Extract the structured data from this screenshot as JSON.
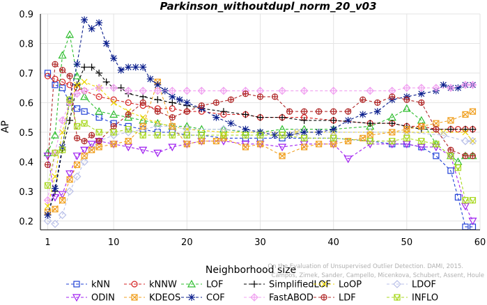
{
  "chart_data": {
    "type": "line",
    "title": "Parkinson_withoutdupl_norm_20_v03",
    "xlabel": "Neighborhood size",
    "ylabel": "AP",
    "xlim": [
      0,
      60
    ],
    "ylim": [
      0.17,
      0.9
    ],
    "xticks": [
      1,
      10,
      20,
      30,
      40,
      50,
      60
    ],
    "yticks": [
      0.2,
      0.3,
      0.4,
      0.5,
      0.6,
      0.7,
      0.8,
      0.9
    ],
    "grid": true,
    "legend_position": "bottom",
    "watermark": [
      "Campos, Zimek, Sander, Campello, Micenkova, Schubert, Assent, Houle",
      "On the Evaluation of Unsupervised Outlier Detection. DAMI, 2015."
    ],
    "series": [
      {
        "name": "kNN",
        "color": "#1f3fd6",
        "marker": "square",
        "x": [
          1,
          2,
          3,
          4,
          5,
          6,
          8,
          10,
          12,
          14,
          16,
          18,
          20,
          22,
          25,
          28,
          30,
          33,
          36,
          40,
          45,
          48,
          50,
          52,
          54,
          56,
          57,
          58,
          59
        ],
        "y": [
          0.7,
          0.66,
          0.65,
          0.6,
          0.58,
          0.57,
          0.55,
          0.53,
          0.52,
          0.51,
          0.5,
          0.5,
          0.49,
          0.49,
          0.48,
          0.48,
          0.48,
          0.48,
          0.48,
          0.48,
          0.47,
          0.46,
          0.46,
          0.45,
          0.42,
          0.37,
          0.28,
          0.18,
          0.18
        ]
      },
      {
        "name": "kNNW",
        "color": "#d42020",
        "marker": "circle",
        "x": [
          1,
          2,
          3,
          4,
          5,
          6,
          8,
          10,
          12,
          14,
          16,
          18,
          20,
          22,
          25,
          28,
          30,
          33,
          36,
          40,
          45,
          48,
          50,
          52,
          54,
          56,
          57,
          58,
          59
        ],
        "y": [
          0.69,
          0.68,
          0.67,
          0.66,
          0.65,
          0.64,
          0.62,
          0.61,
          0.6,
          0.59,
          0.58,
          0.58,
          0.57,
          0.57,
          0.56,
          0.56,
          0.55,
          0.55,
          0.55,
          0.54,
          0.53,
          0.53,
          0.52,
          0.52,
          0.51,
          0.51,
          0.51,
          0.51,
          0.51
        ]
      },
      {
        "name": "LOF",
        "color": "#2dbd2d",
        "marker": "triangle-up",
        "x": [
          1,
          2,
          3,
          4,
          5,
          6,
          8,
          10,
          12,
          14,
          16,
          18,
          20,
          22,
          25,
          28,
          30,
          33,
          36,
          40,
          45,
          48,
          50,
          52,
          54,
          56,
          57,
          58,
          59
        ],
        "y": [
          0.43,
          0.49,
          0.76,
          0.83,
          0.69,
          0.62,
          0.57,
          0.56,
          0.55,
          0.54,
          0.53,
          0.52,
          0.52,
          0.51,
          0.51,
          0.5,
          0.5,
          0.51,
          0.51,
          0.51,
          0.52,
          0.55,
          0.58,
          0.54,
          0.46,
          0.42,
          0.4,
          0.42,
          0.42
        ]
      },
      {
        "name": "SimplifiedLOF",
        "color": "#000000",
        "marker": "plus",
        "x": [
          1,
          2,
          3,
          4,
          5,
          6,
          7,
          8,
          9,
          10,
          11,
          12,
          14,
          16,
          18,
          20,
          22,
          25,
          28,
          30,
          33,
          36,
          40,
          45,
          48,
          50,
          52,
          54,
          56,
          58,
          59
        ],
        "y": [
          0.22,
          0.3,
          0.44,
          0.54,
          0.66,
          0.72,
          0.72,
          0.7,
          0.67,
          0.65,
          0.65,
          0.63,
          0.62,
          0.61,
          0.6,
          0.59,
          0.58,
          0.57,
          0.56,
          0.55,
          0.55,
          0.54,
          0.54,
          0.53,
          0.53,
          0.52,
          0.51,
          0.51,
          0.51,
          0.51,
          0.51
        ]
      },
      {
        "name": "LoOP",
        "color": "#ecd400",
        "marker": "x",
        "x": [
          1,
          2,
          3,
          4,
          5,
          6,
          8,
          10,
          12,
          14,
          16,
          18,
          20,
          25,
          30,
          35,
          40,
          45,
          50,
          55,
          58,
          59
        ],
        "y": [
          0.25,
          0.35,
          0.5,
          0.6,
          0.66,
          0.67,
          0.65,
          0.6,
          0.57,
          0.55,
          0.53,
          0.52,
          0.51,
          0.5,
          0.5,
          0.5,
          0.5,
          0.5,
          0.5,
          0.5,
          0.5,
          0.47
        ]
      },
      {
        "name": "LDOF",
        "color": "#b8bfe8",
        "marker": "diamond",
        "x": [
          1,
          2,
          3,
          4,
          5,
          6,
          7,
          8,
          10,
          12,
          14,
          16,
          18,
          20,
          25,
          30,
          35,
          40,
          45,
          50,
          55,
          58,
          59
        ],
        "y": [
          0.2,
          0.19,
          0.22,
          0.3,
          0.35,
          0.4,
          0.45,
          0.47,
          0.49,
          0.5,
          0.51,
          0.52,
          0.52,
          0.51,
          0.51,
          0.5,
          0.5,
          0.5,
          0.5,
          0.5,
          0.49,
          0.47,
          0.47
        ]
      },
      {
        "name": "ODIN",
        "color": "#a020f0",
        "marker": "triangle-down",
        "x": [
          1,
          2,
          3,
          4,
          5,
          6,
          7,
          8,
          10,
          12,
          14,
          16,
          18,
          20,
          22,
          25,
          28,
          30,
          33,
          36,
          40,
          42,
          45,
          48,
          50,
          52,
          54,
          56,
          58,
          59
        ],
        "y": [
          0.42,
          0.28,
          0.29,
          0.36,
          0.42,
          0.44,
          0.46,
          0.47,
          0.46,
          0.45,
          0.44,
          0.43,
          0.45,
          0.46,
          0.47,
          0.47,
          0.46,
          0.46,
          0.45,
          0.46,
          0.46,
          0.41,
          0.46,
          0.46,
          0.46,
          0.45,
          0.45,
          0.42,
          0.25,
          0.2
        ]
      },
      {
        "name": "KDEOS",
        "color": "#f0a020",
        "marker": "square-x",
        "x": [
          1,
          2,
          3,
          4,
          5,
          6,
          7,
          8,
          10,
          12,
          14,
          16,
          18,
          20,
          22,
          24,
          25,
          28,
          30,
          33,
          36,
          38,
          40,
          42,
          44,
          45,
          48,
          50,
          52,
          54,
          56,
          58,
          59
        ],
        "y": [
          0.23,
          0.24,
          0.27,
          0.34,
          0.39,
          0.42,
          0.44,
          0.45,
          0.46,
          0.47,
          0.52,
          0.67,
          0.52,
          0.46,
          0.47,
          0.47,
          0.48,
          0.45,
          0.46,
          0.42,
          0.45,
          0.46,
          0.46,
          0.47,
          0.48,
          0.49,
          0.5,
          0.51,
          0.52,
          0.53,
          0.54,
          0.56,
          0.57
        ]
      },
      {
        "name": "COF",
        "color": "#0a1e8c",
        "marker": "star",
        "x": [
          1,
          2,
          3,
          4,
          5,
          6,
          7,
          8,
          9,
          10,
          11,
          12,
          13,
          14,
          15,
          16,
          17,
          18,
          19,
          20,
          22,
          24,
          26,
          28,
          30,
          32,
          34,
          36,
          38,
          40,
          42,
          44,
          46,
          48,
          50,
          52,
          54,
          55,
          56,
          57,
          58,
          59
        ],
        "y": [
          0.22,
          0.31,
          0.45,
          0.61,
          0.73,
          0.88,
          0.85,
          0.87,
          0.8,
          0.75,
          0.71,
          0.72,
          0.72,
          0.72,
          0.68,
          0.66,
          0.64,
          0.62,
          0.61,
          0.6,
          0.58,
          0.55,
          0.53,
          0.51,
          0.5,
          0.49,
          0.49,
          0.5,
          0.5,
          0.51,
          0.54,
          0.56,
          0.57,
          0.61,
          0.62,
          0.63,
          0.64,
          0.66,
          0.65,
          0.65,
          0.66,
          0.66
        ]
      },
      {
        "name": "FastABOD",
        "color": "#f0a0f0",
        "marker": "diamond-plus",
        "x": [
          1,
          2,
          3,
          4,
          5,
          6,
          8,
          10,
          12,
          14,
          16,
          18,
          20,
          22,
          25,
          28,
          30,
          33,
          36,
          40,
          45,
          48,
          50,
          52,
          54,
          56,
          58,
          59
        ],
        "y": [
          0.27,
          0.43,
          0.54,
          0.6,
          0.63,
          0.64,
          0.65,
          0.65,
          0.64,
          0.64,
          0.64,
          0.64,
          0.64,
          0.64,
          0.64,
          0.64,
          0.64,
          0.64,
          0.64,
          0.64,
          0.64,
          0.64,
          0.65,
          0.65,
          0.65,
          0.65,
          0.66,
          0.66
        ]
      },
      {
        "name": "LDF",
        "color": "#b02828",
        "marker": "circle-plus",
        "x": [
          1,
          2,
          3,
          4,
          5,
          6,
          7,
          8,
          10,
          12,
          14,
          16,
          18,
          20,
          22,
          24,
          26,
          28,
          30,
          32,
          34,
          36,
          38,
          40,
          42,
          44,
          46,
          48,
          50,
          52,
          54,
          56,
          58,
          59
        ],
        "y": [
          0.39,
          0.73,
          0.71,
          0.69,
          0.48,
          0.47,
          0.49,
          0.47,
          0.52,
          0.56,
          0.6,
          0.57,
          0.55,
          0.57,
          0.59,
          0.6,
          0.61,
          0.63,
          0.62,
          0.62,
          0.57,
          0.57,
          0.57,
          0.57,
          0.57,
          0.61,
          0.6,
          0.62,
          0.61,
          0.6,
          0.51,
          0.44,
          0.42,
          0.42
        ]
      },
      {
        "name": "INFLO",
        "color": "#a8d820",
        "marker": "square-check",
        "x": [
          1,
          2,
          3,
          4,
          5,
          6,
          8,
          10,
          12,
          14,
          16,
          18,
          20,
          22,
          25,
          28,
          30,
          33,
          36,
          40,
          45,
          48,
          50,
          52,
          54,
          56,
          57,
          58,
          59
        ],
        "y": [
          0.32,
          0.43,
          0.44,
          0.61,
          0.52,
          0.53,
          0.5,
          0.5,
          0.51,
          0.49,
          0.49,
          0.49,
          0.49,
          0.49,
          0.49,
          0.49,
          0.49,
          0.49,
          0.48,
          0.48,
          0.47,
          0.47,
          0.48,
          0.47,
          0.46,
          0.42,
          0.38,
          0.27,
          0.27
        ]
      }
    ]
  }
}
